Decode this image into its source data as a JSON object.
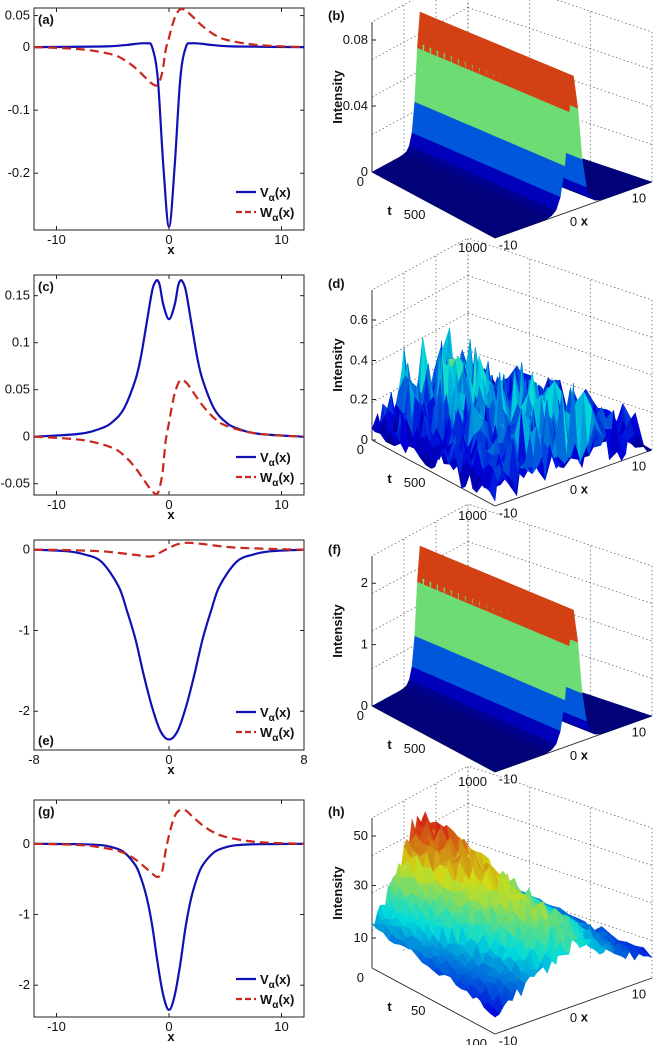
{
  "colors": {
    "v_line": "#1111b3",
    "w_line": "#c8281e",
    "surface_low": "#0b1f8a",
    "surface_high": "#cc0d0d"
  },
  "chart_data": [
    {
      "panel": "(a)",
      "type": "line",
      "xlabel": "x",
      "ylabel": "",
      "xlim": [
        -12,
        12
      ],
      "ylim": [
        -0.29,
        0.062
      ],
      "xticks": [
        -10,
        0,
        10
      ],
      "yticks": [
        0.05,
        0,
        -0.1,
        -0.2
      ],
      "ytick_labels": [
        "0.05",
        "0",
        "-0.1",
        "-0.2"
      ],
      "series": [
        {
          "name": "V",
          "sub": "α",
          "arg": "(x)",
          "style": "solid",
          "x": [
            -12,
            -6,
            -4,
            -3,
            -2,
            -1.5,
            -1,
            -0.5,
            0,
            0.5,
            1,
            1.5,
            2,
            3,
            4,
            6,
            12
          ],
          "y": [
            0,
            0.001,
            0.003,
            0.005,
            0.006,
            0,
            -0.05,
            -0.19,
            -0.285,
            -0.19,
            -0.05,
            0,
            0.006,
            0.005,
            0.003,
            0.001,
            0
          ]
        },
        {
          "name": "W",
          "sub": "α",
          "arg": "(x)",
          "style": "dashed",
          "x": [
            -12,
            -9,
            -7,
            -5,
            -4,
            -3,
            -2,
            -1.5,
            -1,
            -0.6,
            -0.3,
            0,
            0.3,
            0.6,
            1,
            1.5,
            2,
            3,
            4,
            5,
            7,
            9,
            12
          ],
          "y": [
            0,
            -0.002,
            -0.005,
            -0.012,
            -0.02,
            -0.033,
            -0.05,
            -0.058,
            -0.06,
            -0.04,
            -0.005,
            0.015,
            0.035,
            0.05,
            0.06,
            0.058,
            0.05,
            0.033,
            0.02,
            0.012,
            0.005,
            0.002,
            0
          ]
        }
      ],
      "legend_position": "bottom-right"
    },
    {
      "panel": "(b)",
      "type": "surface",
      "zlabel": "Intensity",
      "tlabel": "t",
      "xlabel": "x",
      "zticks": [
        "0",
        "0.04",
        "0.08"
      ],
      "tticks": [
        "0",
        "500",
        "1000"
      ],
      "xticks": [
        "-10",
        "0",
        "10"
      ],
      "peak": 0.09,
      "profile": "stable"
    },
    {
      "panel": "(c)",
      "type": "line",
      "xlabel": "x",
      "ylabel": "",
      "xlim": [
        -12,
        12
      ],
      "ylim": [
        -0.062,
        0.172
      ],
      "xticks": [
        -10,
        0,
        10
      ],
      "yticks": [
        0.15,
        0.1,
        0.05,
        0,
        -0.05
      ],
      "ytick_labels": [
        "0.15",
        "0.1",
        "0.05",
        "0",
        "-0.05"
      ],
      "series": [
        {
          "name": "V",
          "sub": "α",
          "arg": "(x)",
          "style": "solid",
          "x": [
            -12,
            -8,
            -6,
            -5,
            -4,
            -3,
            -2.5,
            -2,
            -1.5,
            -1.2,
            -1,
            -0.8,
            -0.5,
            0,
            0.5,
            0.8,
            1,
            1.2,
            1.5,
            2,
            2.5,
            3,
            4,
            5,
            6,
            8,
            12
          ],
          "y": [
            0,
            0.003,
            0.009,
            0.016,
            0.03,
            0.06,
            0.085,
            0.12,
            0.155,
            0.165,
            0.166,
            0.16,
            0.14,
            0.125,
            0.14,
            0.16,
            0.166,
            0.165,
            0.155,
            0.12,
            0.085,
            0.06,
            0.03,
            0.016,
            0.009,
            0.003,
            0
          ]
        },
        {
          "name": "W",
          "sub": "α",
          "arg": "(x)",
          "style": "dashed",
          "x": [
            -12,
            -9,
            -7,
            -5,
            -4,
            -3,
            -2,
            -1.5,
            -1,
            -0.6,
            -0.3,
            0,
            0.3,
            0.6,
            1,
            1.5,
            2,
            3,
            4,
            5,
            7,
            9,
            12
          ],
          "y": [
            0,
            -0.002,
            -0.005,
            -0.012,
            -0.02,
            -0.033,
            -0.05,
            -0.058,
            -0.06,
            -0.04,
            -0.005,
            0.015,
            0.035,
            0.05,
            0.06,
            0.058,
            0.05,
            0.033,
            0.02,
            0.012,
            0.005,
            0.002,
            0
          ]
        }
      ],
      "legend_position": "bottom-right"
    },
    {
      "panel": "(d)",
      "type": "surface",
      "zlabel": "Intensity",
      "tlabel": "t",
      "xlabel": "x",
      "zticks": [
        "0",
        "0.2",
        "0.4",
        "0.6"
      ],
      "tticks": [
        "0",
        "500",
        "1000"
      ],
      "xticks": [
        "-10",
        "0",
        "10"
      ],
      "peak": 0.7,
      "profile": "unstable"
    },
    {
      "panel": "(e)",
      "type": "line",
      "xlabel": "x",
      "ylabel": "",
      "xlim": [
        -8,
        8
      ],
      "ylim": [
        -2.48,
        0.12
      ],
      "xticks": [
        -8,
        0,
        8
      ],
      "yticks": [
        0,
        -1,
        -2
      ],
      "ytick_labels": [
        "0",
        "-1",
        "-2"
      ],
      "series": [
        {
          "name": "V",
          "sub": "α",
          "arg": "(x)",
          "style": "solid",
          "x": [
            -8,
            -6,
            -5,
            -4,
            -3,
            -2.5,
            -2,
            -1.5,
            -1,
            -0.5,
            0,
            0.5,
            1,
            1.5,
            2,
            2.5,
            3,
            4,
            5,
            6,
            8
          ],
          "y": [
            0,
            -0.02,
            -0.06,
            -0.15,
            -0.45,
            -0.75,
            -1.1,
            -1.55,
            -1.95,
            -2.25,
            -2.35,
            -2.25,
            -1.95,
            -1.55,
            -1.1,
            -0.75,
            -0.45,
            -0.15,
            -0.06,
            -0.02,
            0
          ]
        },
        {
          "name": "W",
          "sub": "α",
          "arg": "(x)",
          "style": "dashed",
          "x": [
            -8,
            -6,
            -4,
            -3,
            -2,
            -1.2,
            -0.8,
            -0.4,
            0,
            0.4,
            0.8,
            1.2,
            2,
            3,
            4,
            6,
            8
          ],
          "y": [
            0,
            -0.005,
            -0.02,
            -0.04,
            -0.065,
            -0.085,
            -0.07,
            -0.02,
            0.02,
            0.06,
            0.08,
            0.085,
            0.07,
            0.045,
            0.025,
            0.01,
            0
          ]
        }
      ],
      "legend_position": "bottom-right"
    },
    {
      "panel": "(f)",
      "type": "surface",
      "zlabel": "Intensity",
      "tlabel": "t",
      "xlabel": "x",
      "zticks": [
        "0",
        "1",
        "2"
      ],
      "tticks": [
        "0",
        "500",
        "1000"
      ],
      "xticks": [
        "-10",
        "0",
        "10"
      ],
      "peak": 2.3,
      "profile": "stable"
    },
    {
      "panel": "(g)",
      "type": "line",
      "xlabel": "x",
      "ylabel": "",
      "xlim": [
        -12,
        12
      ],
      "ylim": [
        -2.45,
        0.62
      ],
      "xticks": [
        -10,
        0,
        10
      ],
      "yticks": [
        0,
        -1,
        -2
      ],
      "ytick_labels": [
        "0",
        "-1",
        "-2"
      ],
      "series": [
        {
          "name": "V",
          "sub": "α",
          "arg": "(x)",
          "style": "solid",
          "x": [
            -12,
            -8,
            -6,
            -5,
            -4,
            -3,
            -2.5,
            -2,
            -1.5,
            -1,
            -0.5,
            0,
            0.5,
            1,
            1.5,
            2,
            2.5,
            3,
            4,
            5,
            6,
            8,
            12
          ],
          "y": [
            0,
            -0.005,
            -0.02,
            -0.05,
            -0.12,
            -0.3,
            -0.48,
            -0.75,
            -1.15,
            -1.7,
            -2.15,
            -2.35,
            -2.15,
            -1.7,
            -1.15,
            -0.75,
            -0.48,
            -0.3,
            -0.12,
            -0.05,
            -0.02,
            -0.005,
            0
          ]
        },
        {
          "name": "W",
          "sub": "α",
          "arg": "(x)",
          "style": "dashed",
          "x": [
            -12,
            -9,
            -7,
            -5,
            -4,
            -3,
            -2,
            -1.5,
            -1,
            -0.6,
            -0.3,
            0,
            0.3,
            0.6,
            1,
            1.5,
            2,
            3,
            4,
            5,
            7,
            9,
            12
          ],
          "y": [
            0,
            -0.01,
            -0.03,
            -0.08,
            -0.13,
            -0.22,
            -0.35,
            -0.42,
            -0.47,
            -0.38,
            -0.1,
            0.12,
            0.3,
            0.42,
            0.48,
            0.47,
            0.4,
            0.26,
            0.16,
            0.1,
            0.04,
            0.015,
            0
          ]
        }
      ],
      "legend_position": "bottom-right"
    },
    {
      "panel": "(h)",
      "type": "surface",
      "zlabel": "Intensity",
      "tlabel": "t",
      "xlabel": "x",
      "zticks": [
        "10",
        "30",
        "50"
      ],
      "tticks": [
        "0",
        "50",
        "100"
      ],
      "xticks": [
        "-10",
        "0",
        "10"
      ],
      "peak": 55,
      "profile": "growing"
    }
  ]
}
